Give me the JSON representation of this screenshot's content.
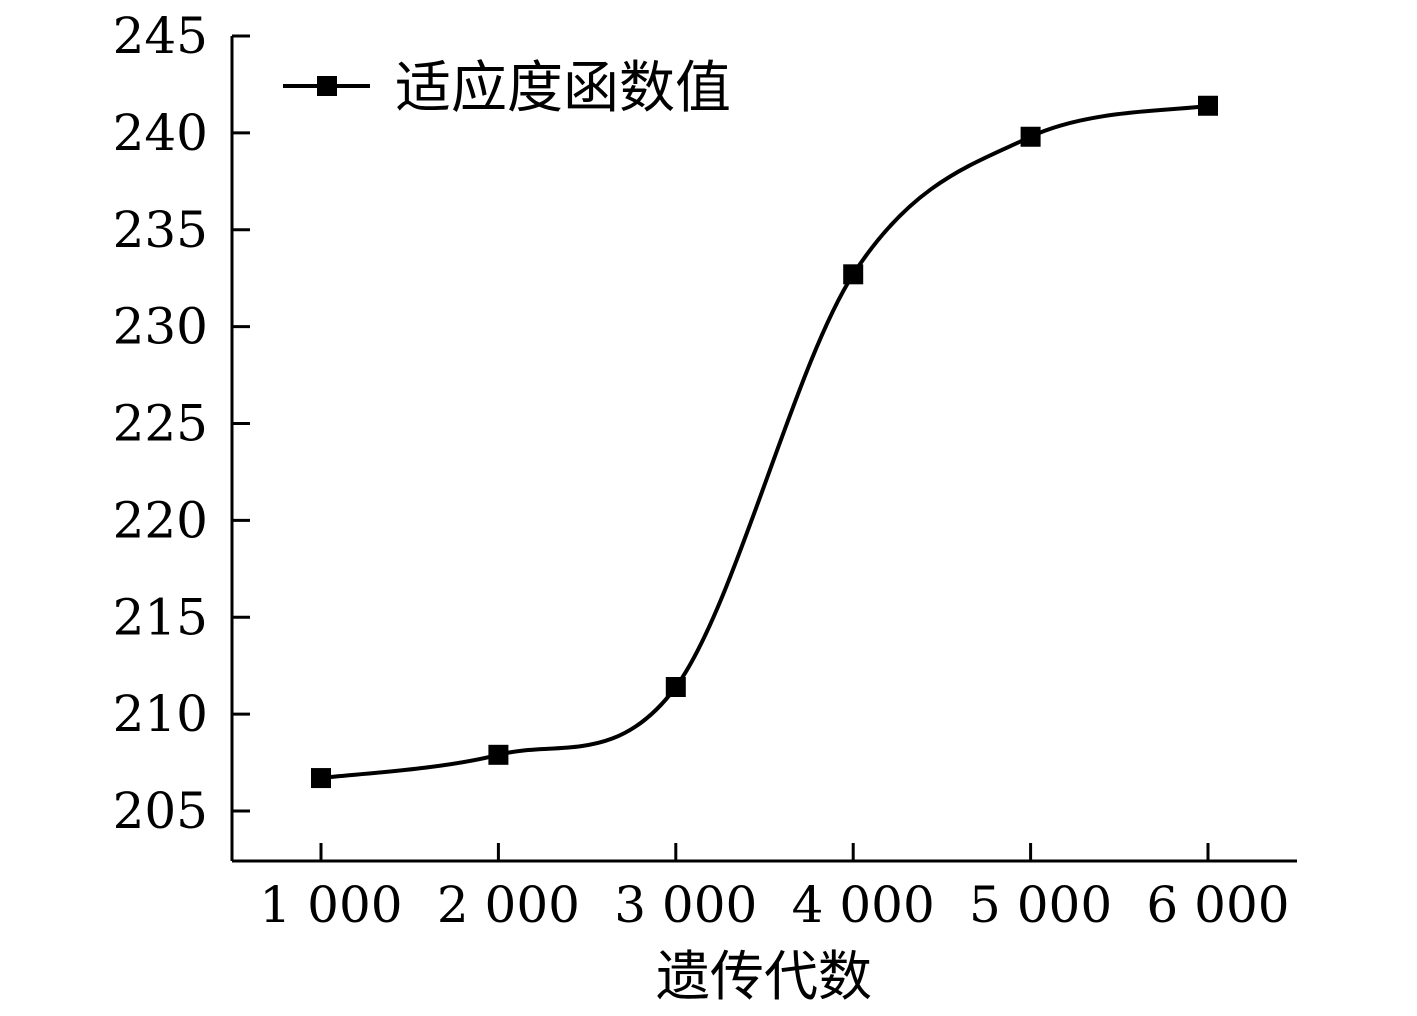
{
  "chart_data": {
    "type": "line",
    "x": [
      1000,
      2000,
      3000,
      4000,
      5000,
      6000
    ],
    "x_tick_labels": [
      "1 000",
      "2 000",
      "3 000",
      "4 000",
      "5 000",
      "6 000"
    ],
    "series": [
      {
        "name": "适应度函数值",
        "values": [
          206.7,
          207.9,
          211.4,
          232.7,
          239.8,
          241.4
        ],
        "color": "#000000",
        "marker": "square"
      }
    ],
    "xlabel": "遗传代数",
    "ylabel": "",
    "xlim": [
      500,
      6500
    ],
    "ylim": [
      202.5,
      245
    ],
    "y_ticks": [
      205,
      210,
      215,
      220,
      225,
      230,
      235,
      240,
      245
    ],
    "y_tick_labels": [
      "205",
      "210",
      "215",
      "220",
      "225",
      "230",
      "235",
      "240",
      "245"
    ],
    "grid": false,
    "legend_position": "top-left",
    "smooth": true
  }
}
